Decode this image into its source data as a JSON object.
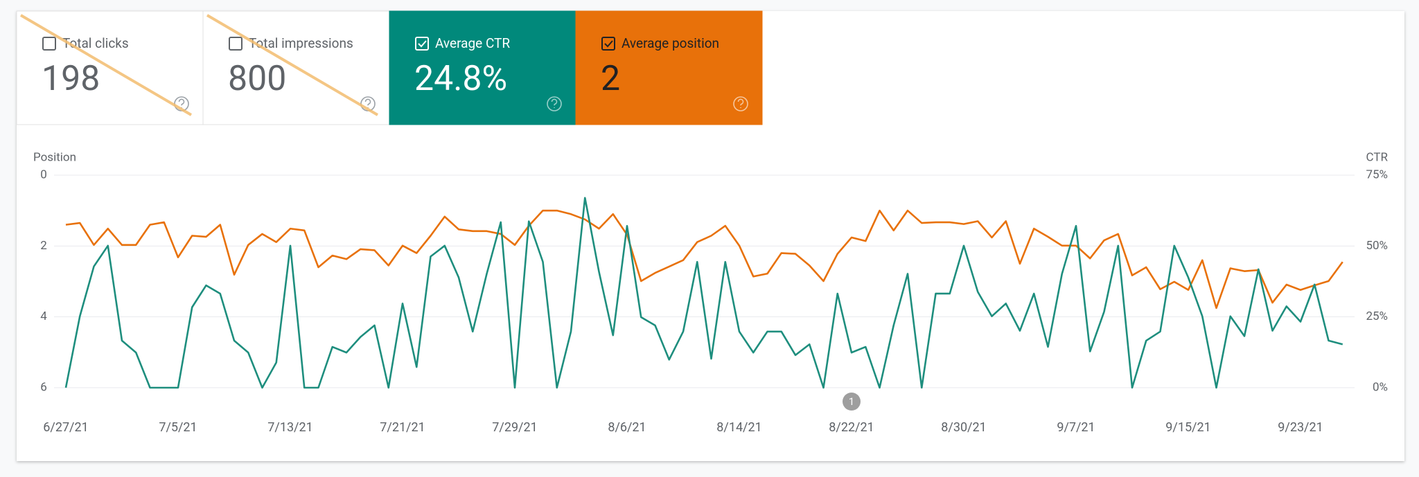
{
  "cards": [
    {
      "label": "Total clicks",
      "value": "198",
      "selected": false
    },
    {
      "label": "Total impressions",
      "value": "800",
      "selected": false
    },
    {
      "label": "Average CTR",
      "value": "24.8%",
      "selected": true,
      "color": "#01897b",
      "text_color": "#ffffff"
    },
    {
      "label": "Average position",
      "value": "2",
      "selected": true,
      "color": "#e8710a",
      "text_color": "#202124"
    }
  ],
  "chart_data": {
    "type": "line",
    "y_title": "Position",
    "y2_title": "CTR",
    "categories": [
      "6/27/21",
      null,
      null,
      null,
      null,
      null,
      null,
      null,
      "7/5/21",
      null,
      null,
      null,
      null,
      null,
      null,
      null,
      "7/13/21",
      null,
      null,
      null,
      null,
      null,
      null,
      null,
      "7/21/21",
      null,
      null,
      null,
      null,
      null,
      null,
      null,
      "7/29/21",
      null,
      null,
      null,
      null,
      null,
      null,
      null,
      "8/6/21",
      null,
      null,
      null,
      null,
      null,
      null,
      null,
      "8/14/21",
      null,
      null,
      null,
      null,
      null,
      null,
      null,
      "8/22/21",
      null,
      null,
      null,
      null,
      null,
      null,
      null,
      "8/30/21",
      null,
      null,
      null,
      null,
      null,
      null,
      null,
      "9/7/21",
      null,
      null,
      null,
      null,
      null,
      null,
      null,
      "9/15/21",
      null,
      null,
      null,
      null,
      null,
      null,
      null,
      "9/23/21",
      null,
      null,
      null
    ],
    "ylim": [
      0,
      6
    ],
    "y_reversed": true,
    "yticks": [
      0,
      2,
      4,
      6
    ],
    "y2lim": [
      0,
      75
    ],
    "y2ticks": [
      {
        "value": 0,
        "label": "0%"
      },
      {
        "value": 25,
        "label": "25%"
      },
      {
        "value": 50,
        "label": "50%"
      },
      {
        "value": 75,
        "label": "75%"
      }
    ],
    "grid": true,
    "series": [
      {
        "color": "#e8710a",
        "values": [
          1.4,
          1.35,
          1.97,
          1.51,
          1.97,
          1.97,
          1.4,
          1.33,
          2.32,
          1.71,
          1.74,
          1.4,
          2.81,
          1.97,
          1.66,
          1.89,
          1.51,
          1.56,
          2.6,
          2.27,
          2.37,
          2.09,
          2.12,
          2.55,
          1.99,
          2.2,
          1.71,
          1.17,
          1.53,
          1.58,
          1.58,
          1.66,
          1.97,
          1.43,
          1.0,
          1.0,
          1.1,
          1.25,
          1.51,
          1.1,
          1.68,
          2.99,
          2.76,
          2.58,
          2.4,
          1.89,
          1.71,
          1.43,
          1.99,
          2.86,
          2.78,
          2.2,
          2.22,
          2.55,
          2.99,
          2.22,
          1.76,
          1.86,
          1.0,
          1.56,
          1.0,
          1.35,
          1.33,
          1.33,
          1.38,
          1.3,
          1.76,
          1.3,
          2.5,
          1.51,
          1.74,
          1.99,
          1.99,
          2.35,
          1.84,
          1.66,
          2.83,
          2.6,
          3.22,
          3.01,
          3.24,
          2.4,
          3.75,
          2.63,
          2.71,
          2.68,
          3.6,
          3.09,
          3.24,
          3.11,
          2.99,
          2.45
        ]
      },
      {
        "color": "#1e8e7e",
        "axis": "y2",
        "values": [
          0,
          25.2,
          42.8,
          50.1,
          16.6,
          12.4,
          0,
          0,
          0,
          28.4,
          36.1,
          33.2,
          16.6,
          12.4,
          0,
          8.9,
          50.1,
          0,
          0,
          14.4,
          12.4,
          17.9,
          22.0,
          0,
          29.7,
          7.3,
          46.3,
          50.1,
          38.9,
          19.8,
          40.2,
          58.4,
          0,
          58.7,
          44.4,
          0,
          19.8,
          67.0,
          40.9,
          18.5,
          57.1,
          24.9,
          22.0,
          9.9,
          19.8,
          44.4,
          10.2,
          44.4,
          19.8,
          12.4,
          19.8,
          19.8,
          11.5,
          15.3,
          0,
          33.2,
          12.4,
          14.4,
          0,
          22.0,
          40.2,
          0,
          33.2,
          33.2,
          50.1,
          33.8,
          25.2,
          29.7,
          20.1,
          33.2,
          14.4,
          40.2,
          57.1,
          12.8,
          26.8,
          50.1,
          0,
          16.6,
          19.8,
          50.1,
          38.9,
          25.2,
          0,
          25.2,
          18.2,
          41.8,
          20.1,
          28.7,
          23.3,
          36.4,
          16.6,
          15.3
        ]
      }
    ],
    "annotations": [
      {
        "x": "8/22/21",
        "label": "1"
      }
    ]
  }
}
